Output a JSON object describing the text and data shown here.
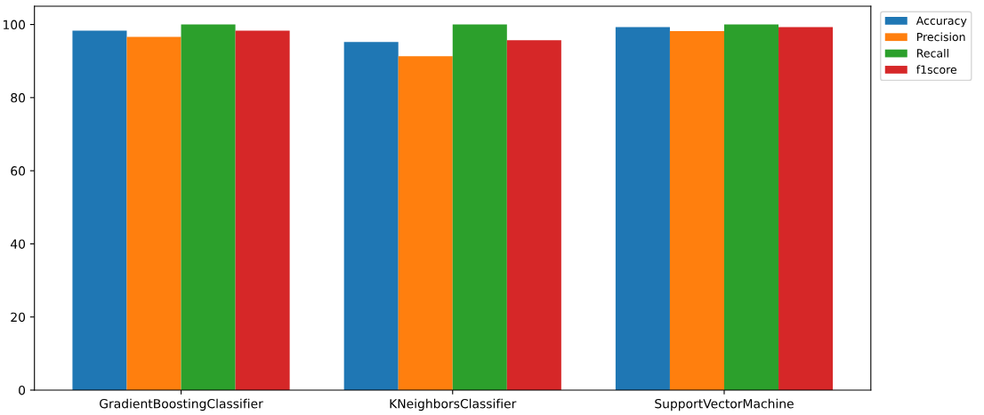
{
  "chart_data": {
    "type": "bar",
    "categories": [
      "GradientBoostingClassifier",
      "KNeighborsClassifier",
      "SupportVectorMachine"
    ],
    "series": [
      {
        "name": "Accuracy",
        "color": "#1f77b4",
        "values": [
          98.3,
          95.2,
          99.3
        ]
      },
      {
        "name": "Precision",
        "color": "#ff7f0e",
        "values": [
          96.6,
          91.3,
          98.2
        ]
      },
      {
        "name": "Recall",
        "color": "#2ca02c",
        "values": [
          100,
          100,
          100
        ]
      },
      {
        "name": "f1score",
        "color": "#d62728",
        "values": [
          98.3,
          95.7,
          99.3
        ]
      }
    ],
    "ylim": [
      0,
      105
    ],
    "yticks": [
      0,
      20,
      40,
      60,
      80,
      100
    ],
    "grid": false,
    "legend": "top right"
  }
}
